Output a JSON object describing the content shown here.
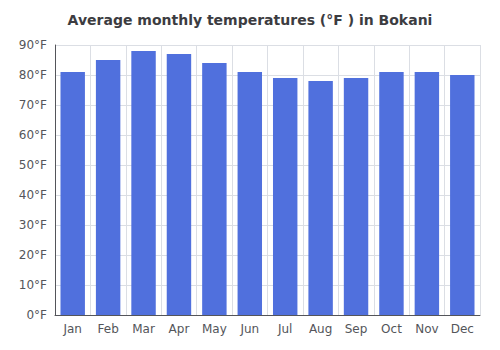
{
  "chart_data": {
    "type": "bar",
    "title": "Average monthly temperatures (°F ) in Bokani",
    "categories": [
      "Jan",
      "Feb",
      "Mar",
      "Apr",
      "May",
      "Jun",
      "Jul",
      "Aug",
      "Sep",
      "Oct",
      "Nov",
      "Dec"
    ],
    "values": [
      81,
      85,
      88,
      87,
      84,
      81,
      79,
      78,
      79,
      81,
      81,
      80
    ],
    "ylim": [
      0,
      90
    ],
    "yticks": [
      {
        "value": 0,
        "label": "0°F"
      },
      {
        "value": 10,
        "label": "10°F"
      },
      {
        "value": 20,
        "label": "20°F"
      },
      {
        "value": 30,
        "label": "30°F"
      },
      {
        "value": 40,
        "label": "40°F"
      },
      {
        "value": 50,
        "label": "50°F"
      },
      {
        "value": 60,
        "label": "60°F"
      },
      {
        "value": 70,
        "label": "70°F"
      },
      {
        "value": 80,
        "label": "80°F"
      },
      {
        "value": 90,
        "label": "90°F"
      }
    ],
    "grid": true
  }
}
